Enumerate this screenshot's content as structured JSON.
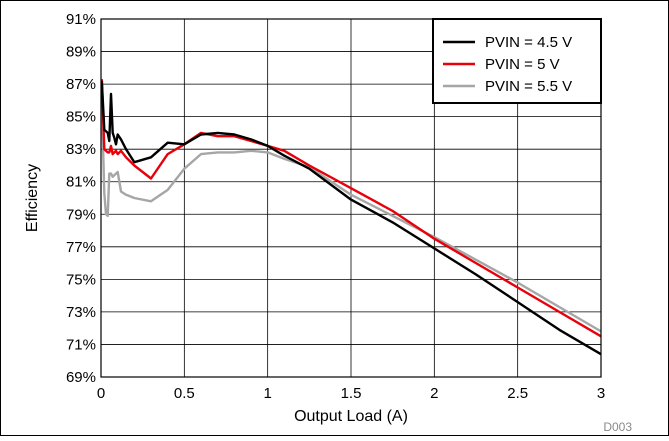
{
  "chart_data": {
    "type": "line",
    "title": "",
    "xlabel": "Output Load (A)",
    "ylabel": "Efficiency",
    "xlim": [
      0,
      3
    ],
    "ylim": [
      69,
      91
    ],
    "x_ticks": [
      0,
      0.5,
      1,
      1.5,
      2,
      2.5,
      3
    ],
    "x_tick_labels": [
      "0",
      "0.5",
      "1",
      "1.5",
      "2",
      "2.5",
      "3"
    ],
    "y_ticks": [
      69,
      71,
      73,
      75,
      77,
      79,
      81,
      83,
      85,
      87,
      89,
      91
    ],
    "y_tick_labels": [
      "69%",
      "71%",
      "73%",
      "75%",
      "77%",
      "79%",
      "81%",
      "83%",
      "85%",
      "87%",
      "89%",
      "91%"
    ],
    "grid": true,
    "legend_position": "top-right",
    "watermark": "D003",
    "series": [
      {
        "name": "PVIN = 4.5 V",
        "color": "#000000",
        "x": [
          0.005,
          0.02,
          0.04,
          0.05,
          0.06,
          0.07,
          0.08,
          0.09,
          0.1,
          0.12,
          0.15,
          0.2,
          0.3,
          0.4,
          0.5,
          0.6,
          0.7,
          0.8,
          0.9,
          1.0,
          1.1,
          1.25,
          1.5,
          1.75,
          2.0,
          2.25,
          2.5,
          2.75,
          3.0
        ],
        "y": [
          87.2,
          84.2,
          84.0,
          83.5,
          86.4,
          84.0,
          83.7,
          83.3,
          83.9,
          83.6,
          83.0,
          82.2,
          82.5,
          83.4,
          83.3,
          83.9,
          84.0,
          83.9,
          83.6,
          83.2,
          82.6,
          81.8,
          79.9,
          78.5,
          76.9,
          75.3,
          73.6,
          71.9,
          70.4
        ]
      },
      {
        "name": "PVIN = 5 V",
        "color": "#e8000b",
        "x": [
          0.005,
          0.02,
          0.04,
          0.05,
          0.06,
          0.07,
          0.08,
          0.09,
          0.1,
          0.12,
          0.15,
          0.2,
          0.3,
          0.4,
          0.5,
          0.6,
          0.7,
          0.8,
          0.9,
          1.0,
          1.1,
          1.25,
          1.5,
          1.75,
          2.0,
          2.25,
          2.5,
          2.75,
          3.0
        ],
        "y": [
          87.3,
          83.0,
          82.8,
          82.8,
          83.2,
          82.7,
          82.8,
          82.9,
          82.7,
          82.9,
          82.5,
          82.0,
          81.2,
          82.7,
          83.3,
          84.0,
          83.8,
          83.8,
          83.5,
          83.2,
          82.9,
          82.0,
          80.6,
          79.2,
          77.5,
          76.0,
          74.5,
          73.0,
          71.5
        ]
      },
      {
        "name": "PVIN = 5.5 V",
        "color": "#a6a6a6",
        "x": [
          0.005,
          0.02,
          0.03,
          0.04,
          0.05,
          0.06,
          0.07,
          0.08,
          0.09,
          0.1,
          0.12,
          0.15,
          0.2,
          0.3,
          0.4,
          0.5,
          0.6,
          0.7,
          0.8,
          0.9,
          1.0,
          1.1,
          1.25,
          1.5,
          1.75,
          2.0,
          2.25,
          2.5,
          2.75,
          3.0
        ],
        "y": [
          86.0,
          80.3,
          79.0,
          78.9,
          81.5,
          81.5,
          81.3,
          81.4,
          81.5,
          81.6,
          80.4,
          80.2,
          80.0,
          79.8,
          80.5,
          81.8,
          82.7,
          82.8,
          82.8,
          82.9,
          82.8,
          82.4,
          81.9,
          80.2,
          78.9,
          77.6,
          76.2,
          74.8,
          73.3,
          71.8
        ]
      }
    ]
  }
}
